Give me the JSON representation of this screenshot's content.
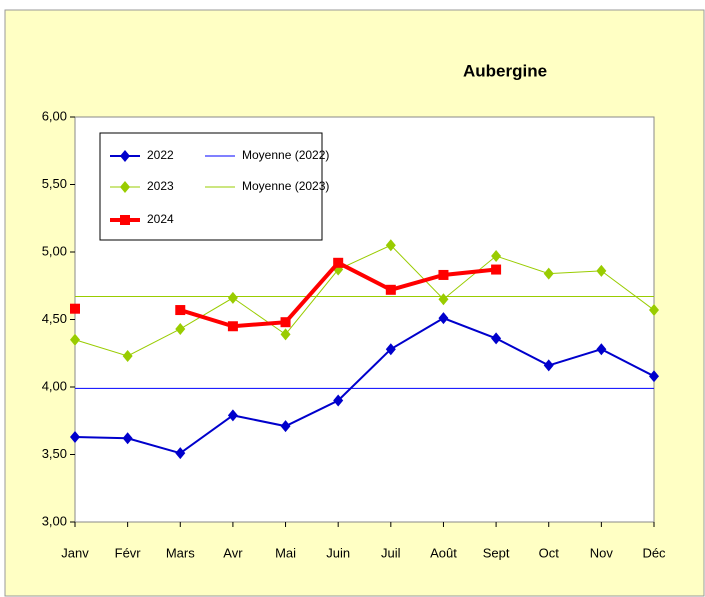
{
  "chart_data": {
    "type": "line",
    "title": "Aubergine",
    "categories": [
      "Janv",
      "Févr",
      "Mars",
      "Avr",
      "Mai",
      "Juin",
      "Juil",
      "Août",
      "Sept",
      "Oct",
      "Nov",
      "Déc"
    ],
    "series": [
      {
        "name": "2022",
        "color": "#0000cc",
        "marker": "diamond",
        "values": [
          3.63,
          3.62,
          3.51,
          3.79,
          3.71,
          3.9,
          4.28,
          4.51,
          4.36,
          4.16,
          4.28,
          4.08
        ]
      },
      {
        "name": "2023",
        "color": "#99cc00",
        "marker": "diamond",
        "values": [
          4.35,
          4.23,
          4.43,
          4.66,
          4.39,
          4.87,
          5.05,
          4.65,
          4.97,
          4.84,
          4.86,
          4.57
        ]
      },
      {
        "name": "2024",
        "color": "#ff0000",
        "marker": "square",
        "values": [
          4.58,
          null,
          4.57,
          4.45,
          4.48,
          4.92,
          4.72,
          4.83,
          4.87,
          null,
          null,
          null
        ]
      }
    ],
    "reference_lines": [
      {
        "name": "Moyenne (2022)",
        "color": "#0000ff",
        "value": 3.99
      },
      {
        "name": "Moyenne (2023)",
        "color": "#99cc00",
        "value": 4.67
      }
    ],
    "ylim": [
      3,
      6
    ],
    "yticks": [
      {
        "value": 3,
        "label": "3,00"
      },
      {
        "value": 3.5,
        "label": "3,50"
      },
      {
        "value": 4,
        "label": "4,00"
      },
      {
        "value": 4.5,
        "label": "4,50"
      },
      {
        "value": 5,
        "label": "5,00"
      },
      {
        "value": 5.5,
        "label": "5,50"
      },
      {
        "value": 6,
        "label": "6,00"
      }
    ],
    "legend": "top-left"
  }
}
